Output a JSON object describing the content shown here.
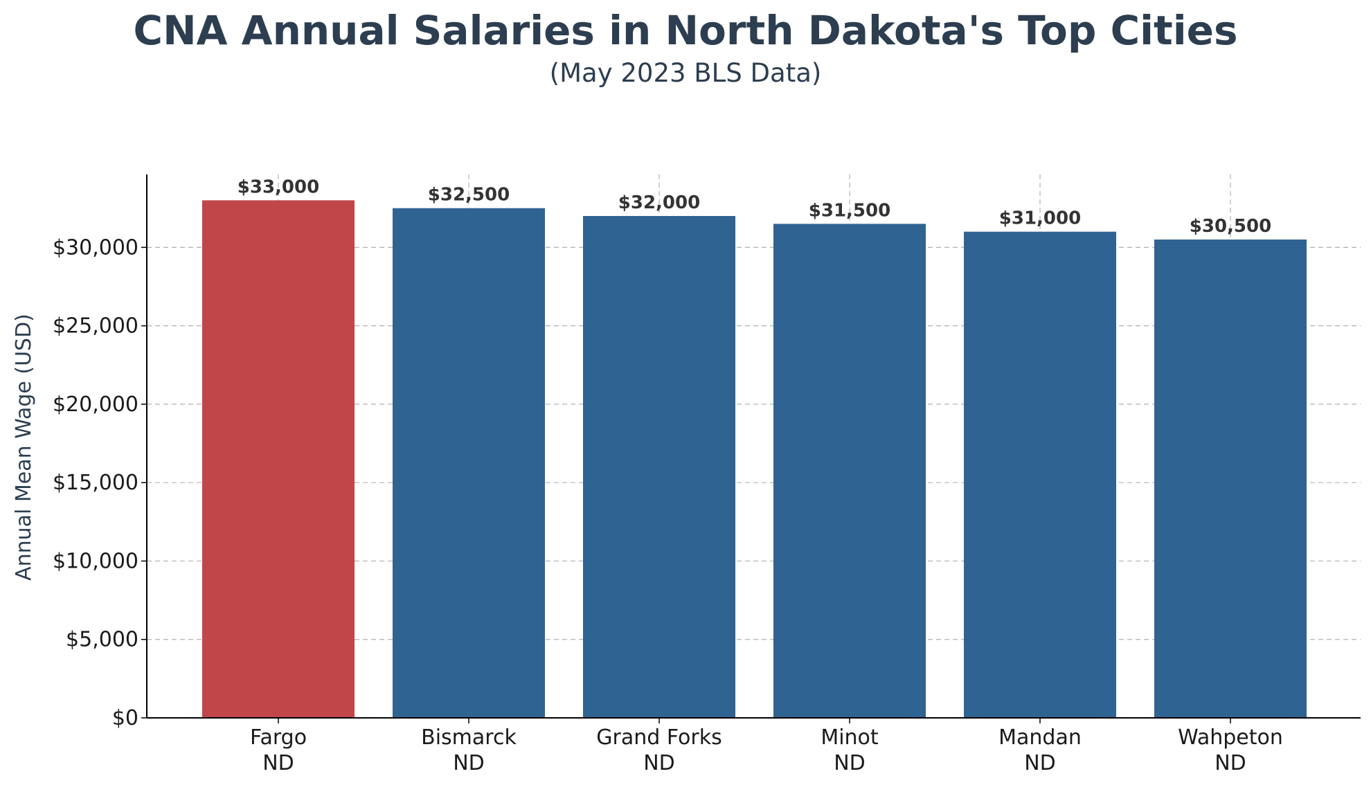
{
  "chart_data": {
    "type": "bar",
    "title": "CNA Annual Salaries in North Dakota's Top Cities",
    "subtitle": "(May 2023 BLS Data)",
    "xlabel": "",
    "ylabel": "Annual Mean Wage (USD)",
    "categories": [
      "Fargo\nND",
      "Bismarck\nND",
      "Grand Forks\nND",
      "Minot\nND",
      "Mandan\nND",
      "Wahpeton\nND"
    ],
    "values": [
      33000,
      32500,
      32000,
      31500,
      31000,
      30500
    ],
    "data_labels": [
      "$33,000",
      "$32,500",
      "$32,000",
      "$31,500",
      "$31,000",
      "$30,500"
    ],
    "ylim": [
      0,
      34650
    ],
    "yticks": [
      0,
      5000,
      10000,
      15000,
      20000,
      25000,
      30000
    ],
    "ytick_labels": [
      "$0",
      "$5,000",
      "$10,000",
      "$15,000",
      "$20,000",
      "$25,000",
      "$30,000"
    ],
    "grid": true,
    "legend": "none",
    "colors": {
      "highlight": "#c0464a",
      "default": "#2f6391",
      "title": "#2c3e50",
      "axis": "#000000"
    },
    "highlight_index": 0
  }
}
